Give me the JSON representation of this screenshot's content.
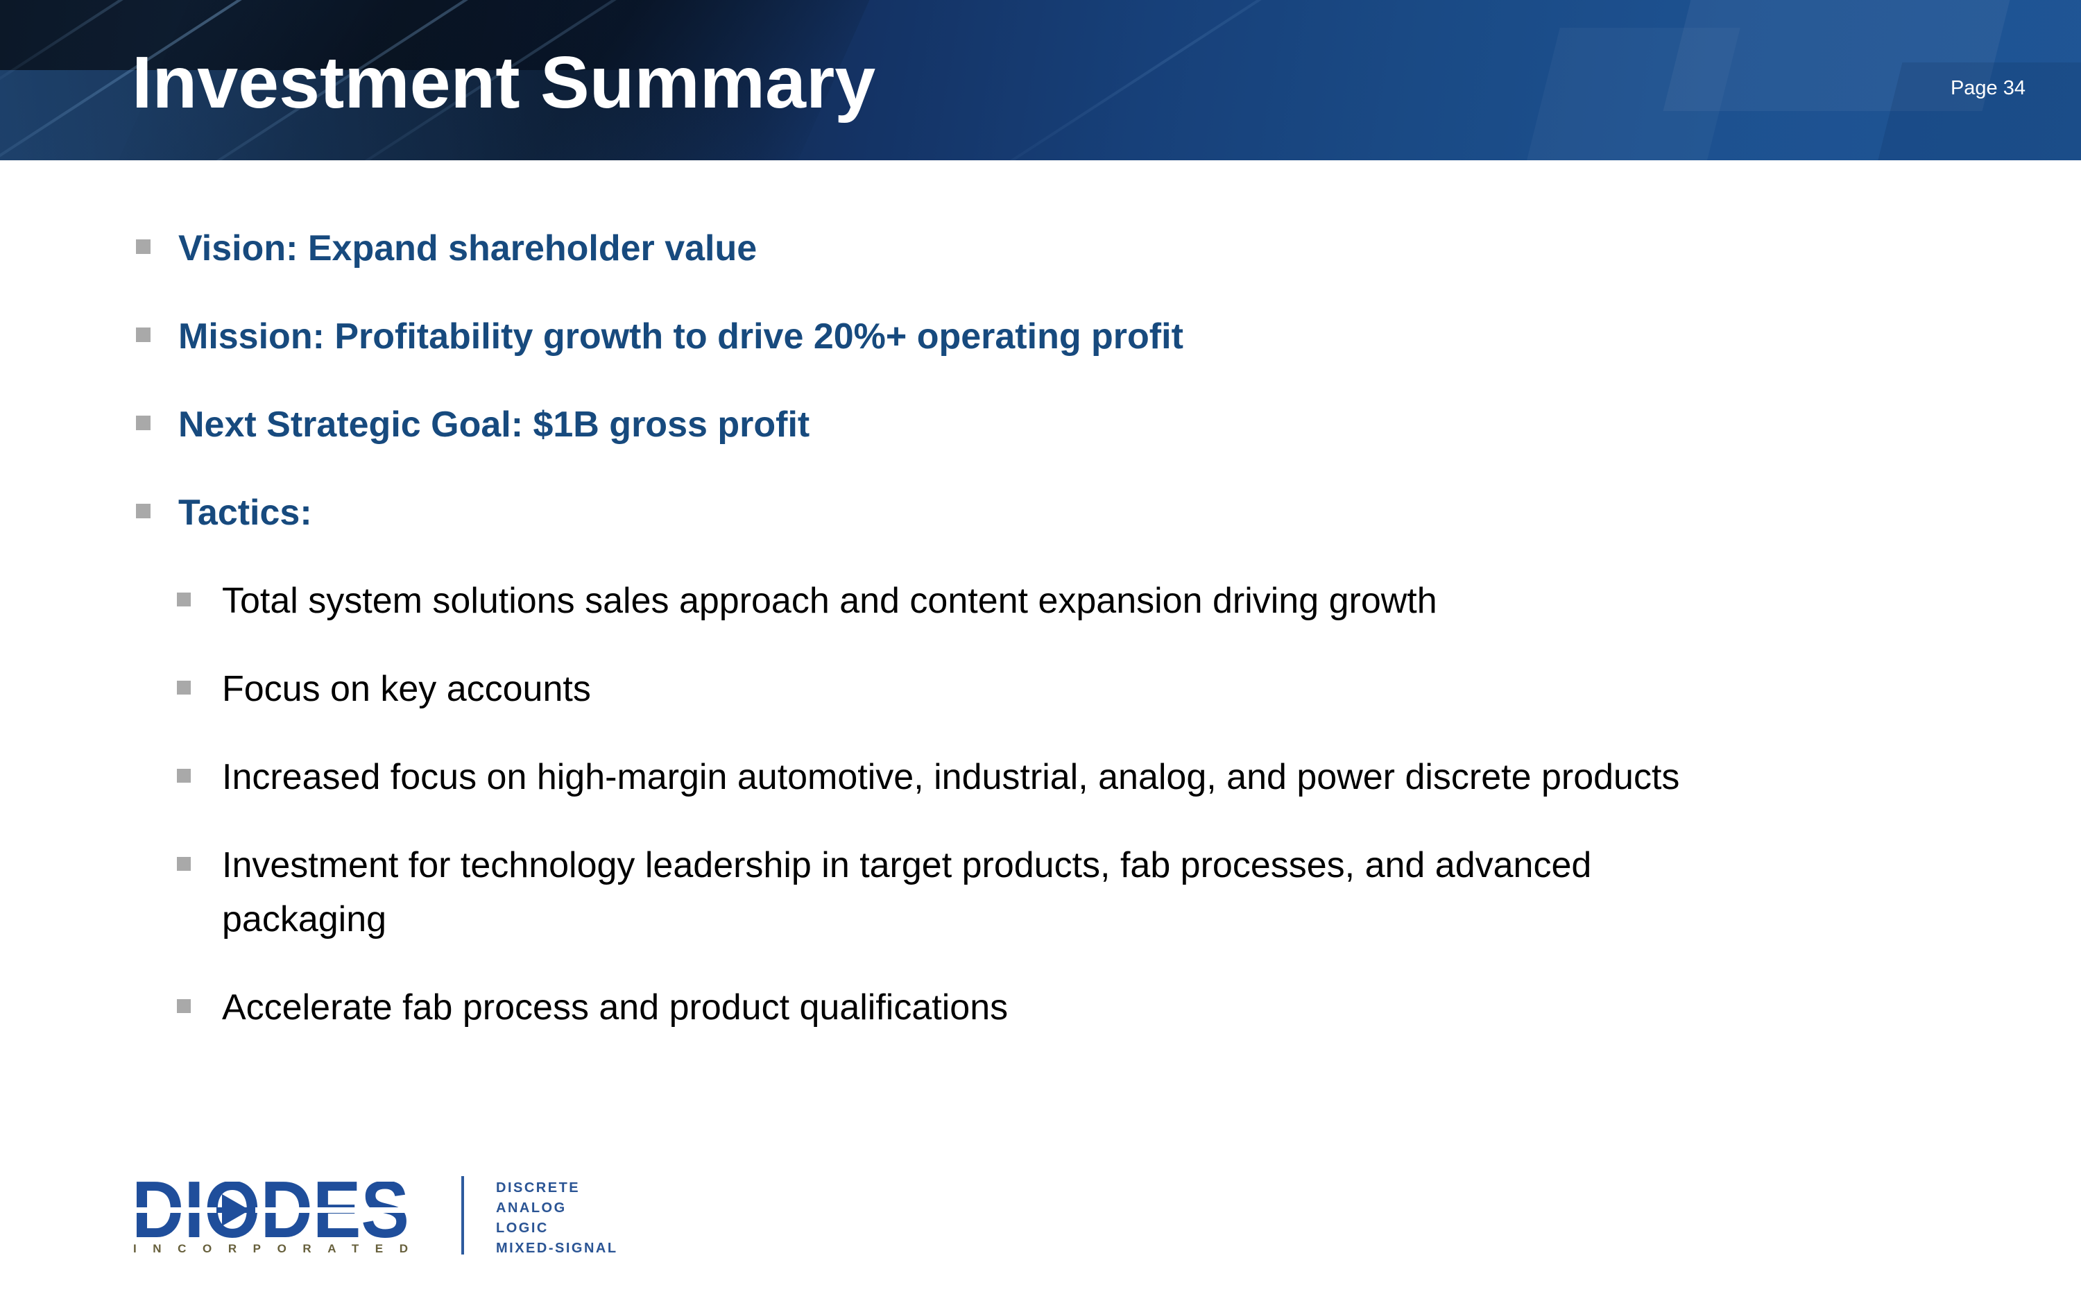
{
  "header": {
    "title": "Investment Summary",
    "page_label": "Page 34"
  },
  "content": {
    "bullets": [
      {
        "level": 1,
        "text": "Vision: Expand shareholder value"
      },
      {
        "level": 1,
        "text": "Mission: Profitability growth to drive 20%+ operating profit"
      },
      {
        "level": 1,
        "text": "Next Strategic Goal: $1B gross profit"
      },
      {
        "level": 1,
        "text": "Tactics:"
      },
      {
        "level": 2,
        "text": "Total system solutions sales approach and content expansion driving growth"
      },
      {
        "level": 2,
        "text": "Focus on key accounts"
      },
      {
        "level": 2,
        "text": "Increased focus on high-margin automotive, industrial, analog, and power discrete products"
      },
      {
        "level": 2,
        "text": "Investment for technology leadership in target products, fab processes, and advanced packaging"
      },
      {
        "level": 2,
        "text": "Accelerate fab process and product qualifications"
      }
    ]
  },
  "footer": {
    "logo": {
      "brand": "DIODES",
      "sub_brand": "INCORPORATED",
      "tagline": [
        "DISCRETE",
        "ANALOG",
        "LOGIC",
        "MIXED-SIGNAL"
      ]
    }
  },
  "colors": {
    "header_dark": "#0d1a2c",
    "header_blue": "#1d5190",
    "bullet_navy": "#174A7E",
    "marker_gray": "#A9A9A9",
    "logo_blue": "#1F4E9B",
    "incorporated_olive": "#67603C",
    "tagline_blue": "#2A5494",
    "divider_blue": "#2D5B9E",
    "body_black": "#000000"
  }
}
